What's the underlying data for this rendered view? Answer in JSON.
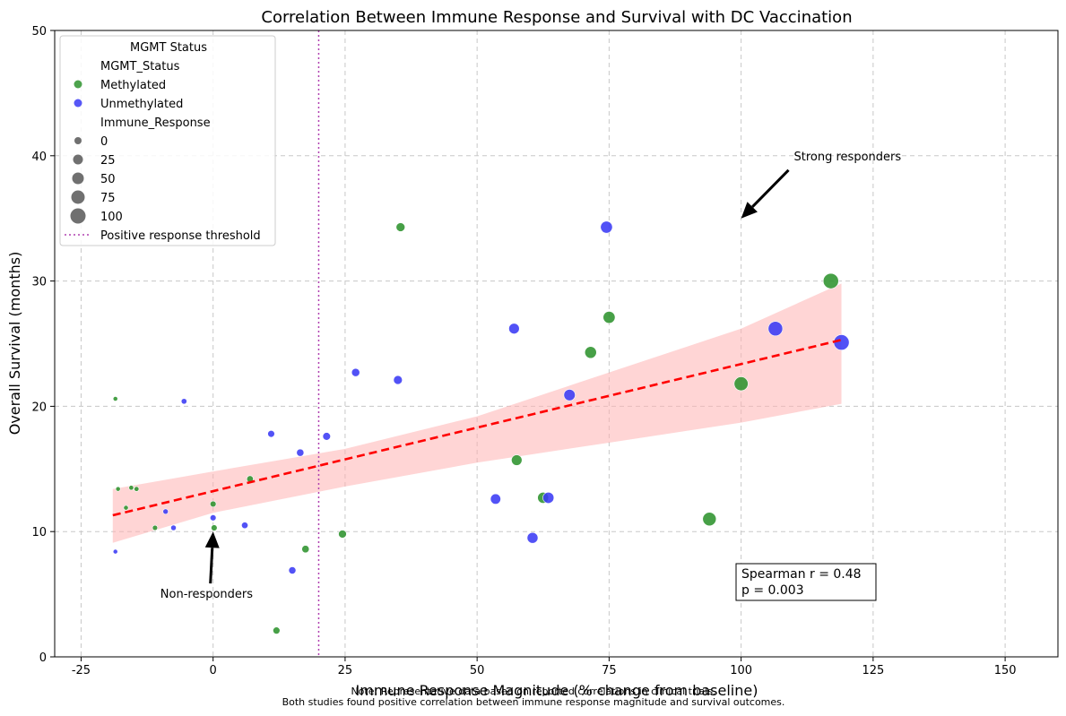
{
  "chart_data": {
    "type": "scatter",
    "title": "Correlation Between Immune Response and Survival with DC Vaccination",
    "xlabel": "Immune Response Magnitude (% change from baseline)",
    "ylabel": "Overall Survival (months)",
    "xlim": [
      -30,
      160
    ],
    "ylim": [
      0,
      50
    ],
    "xticks": [
      -25,
      0,
      25,
      50,
      75,
      100,
      125,
      150
    ],
    "yticks": [
      0,
      10,
      20,
      30,
      40,
      50
    ],
    "grid": true,
    "colors": {
      "Methylated": "#2e932e",
      "Unmethylated": "#3a3af5",
      "trend": "#ff0000",
      "band": "#ffb3b3",
      "threshold": "#b040b0"
    },
    "series": [
      {
        "name": "Methylated",
        "points": [
          {
            "x": -18.5,
            "y": 20.6
          },
          {
            "x": -18,
            "y": 13.4
          },
          {
            "x": -16.5,
            "y": 11.9
          },
          {
            "x": -15.5,
            "y": 13.5
          },
          {
            "x": -14.5,
            "y": 13.4
          },
          {
            "x": -11,
            "y": 10.3
          },
          {
            "x": 0,
            "y": 12.2
          },
          {
            "x": 0.2,
            "y": 10.3
          },
          {
            "x": 7,
            "y": 14.2
          },
          {
            "x": 12,
            "y": 2.1
          },
          {
            "x": 17.5,
            "y": 8.6
          },
          {
            "x": 24.5,
            "y": 9.8
          },
          {
            "x": 35.5,
            "y": 34.3
          },
          {
            "x": 57.5,
            "y": 15.7
          },
          {
            "x": 62.5,
            "y": 12.7
          },
          {
            "x": 71.5,
            "y": 24.3
          },
          {
            "x": 75,
            "y": 27.1
          },
          {
            "x": 94,
            "y": 11.0
          },
          {
            "x": 100,
            "y": 21.8
          },
          {
            "x": 117,
            "y": 30.0
          }
        ]
      },
      {
        "name": "Unmethylated",
        "points": [
          {
            "x": -18.5,
            "y": 8.4
          },
          {
            "x": -9,
            "y": 11.6
          },
          {
            "x": -7.5,
            "y": 10.3
          },
          {
            "x": -5.5,
            "y": 20.4
          },
          {
            "x": 0,
            "y": 11.1
          },
          {
            "x": 6,
            "y": 10.5
          },
          {
            "x": 11,
            "y": 17.8
          },
          {
            "x": 15,
            "y": 6.9
          },
          {
            "x": 16.5,
            "y": 16.3
          },
          {
            "x": 21.5,
            "y": 17.6
          },
          {
            "x": 27,
            "y": 22.7
          },
          {
            "x": 35,
            "y": 22.1
          },
          {
            "x": 53.5,
            "y": 12.6
          },
          {
            "x": 57,
            "y": 26.2
          },
          {
            "x": 60.5,
            "y": 9.5
          },
          {
            "x": 63.5,
            "y": 12.7
          },
          {
            "x": 67.5,
            "y": 20.9
          },
          {
            "x": 74.5,
            "y": 34.3
          },
          {
            "x": 106.5,
            "y": 26.2
          },
          {
            "x": 119,
            "y": 25.1
          }
        ]
      }
    ],
    "trend_line": {
      "x": [
        -19,
        119
      ],
      "y": [
        11.3,
        25.3
      ]
    },
    "confidence_band": {
      "x": [
        -19,
        0,
        25,
        50,
        75,
        100,
        119
      ],
      "lower": [
        9.1,
        11.5,
        13.6,
        15.5,
        17.1,
        18.7,
        20.2
      ],
      "upper": [
        13.4,
        14.8,
        16.6,
        19.2,
        22.7,
        26.2,
        29.8
      ]
    },
    "threshold": {
      "x": 20,
      "label": "Positive response threshold"
    },
    "legend": {
      "placement": "top-left",
      "title": "MGMT Status",
      "hue_header": "MGMT_Status",
      "size_header": "Immune_Response",
      "size_values": [
        "0",
        "25",
        "50",
        "75",
        "100"
      ]
    },
    "annotations": [
      {
        "text": "Strong responders",
        "x": 110,
        "y": 40,
        "arrow_to": [
          100,
          35
        ]
      },
      {
        "text": "Non-responders",
        "x": -10,
        "y": 5,
        "arrow_to": [
          0,
          10
        ]
      }
    ],
    "stats_box": {
      "line1": "Spearman r = 0.48",
      "line2": "p = 0.003"
    }
  },
  "footnote": {
    "line1": "Note: Representative data based on reported correlations in clinical trials.",
    "line2": "Both studies found positive correlation between immune response magnitude and survival outcomes."
  }
}
